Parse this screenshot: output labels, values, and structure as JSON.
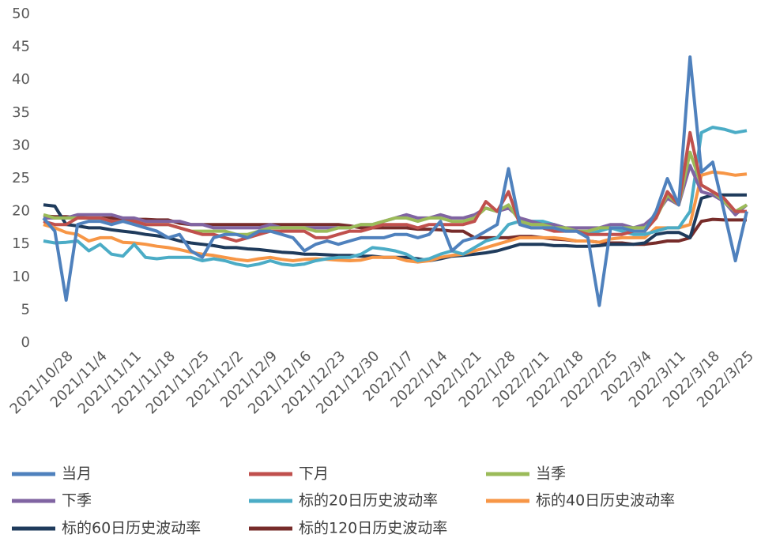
{
  "chart_data": {
    "type": "line",
    "categories": [
      null,
      null,
      "2021/10/28",
      null,
      null,
      "2021/11/4",
      null,
      null,
      "2021/11/11",
      null,
      null,
      "2021/11/18",
      null,
      null,
      "2021/11/25",
      null,
      null,
      "2021/12/2",
      null,
      null,
      "2021/12/9",
      null,
      null,
      "2021/12/16",
      null,
      null,
      "2021/12/23",
      null,
      null,
      "2021/12/30",
      null,
      null,
      "2022/1/7",
      null,
      null,
      "2022/1/14",
      null,
      null,
      "2022/1/21",
      null,
      null,
      "2022/1/28",
      null,
      null,
      "2022/2/11",
      null,
      null,
      "2022/2/18",
      null,
      null,
      "2022/2/25",
      null,
      null,
      "2022/3/4",
      null,
      null,
      "2022/3/11",
      null,
      null,
      "2022/3/18",
      null,
      null,
      "2022/3/25"
    ],
    "ylim": [
      0,
      50
    ],
    "yticks": [
      0,
      5,
      10,
      15,
      20,
      25,
      30,
      35,
      40,
      45,
      50
    ],
    "series": [
      {
        "name": "当月",
        "color": "#4f81bd",
        "values": [
          19,
          17,
          6.5,
          18,
          18.5,
          18.5,
          18,
          18.5,
          18,
          17.5,
          17,
          16,
          16.5,
          14,
          13,
          16,
          16.5,
          16.5,
          16,
          17,
          17,
          16.5,
          16,
          14,
          15,
          15.5,
          15,
          15.5,
          16,
          16,
          16,
          16.5,
          16.5,
          16,
          16.5,
          18.5,
          14,
          15.5,
          16,
          17,
          18,
          26.5,
          18,
          17.5,
          17.5,
          17.5,
          17,
          17,
          16,
          5.7,
          17.5,
          17.5,
          17,
          17,
          20,
          25,
          21,
          43.5,
          26,
          27.5,
          20,
          12.5,
          20
        ]
      },
      {
        "name": "下月",
        "color": "#c0504d",
        "values": [
          18.5,
          18,
          18,
          19,
          19,
          19,
          18.5,
          18.5,
          18.5,
          18,
          18,
          18,
          17.5,
          17,
          16.5,
          16.5,
          16,
          15.5,
          16,
          16.5,
          17,
          17,
          17,
          17,
          16,
          16,
          16.5,
          17,
          17,
          17.5,
          18,
          18,
          18,
          17.5,
          18,
          18,
          18,
          18,
          18.5,
          21.5,
          20,
          23,
          18,
          17.5,
          17.5,
          17,
          17,
          17,
          16.5,
          16.5,
          16.5,
          16.5,
          17,
          17,
          19,
          23,
          21,
          32,
          24,
          23,
          22,
          20,
          20
        ]
      },
      {
        "name": "当季",
        "color": "#9bbb59",
        "values": [
          19.5,
          19,
          19,
          19,
          19,
          19,
          18.5,
          18.5,
          18.5,
          18,
          18,
          18,
          17.5,
          17,
          17,
          17,
          17,
          16.5,
          16.5,
          17,
          17.5,
          17.5,
          17.5,
          17.5,
          17,
          17,
          17.5,
          17.5,
          18,
          18,
          18.5,
          19,
          19,
          18.5,
          19,
          19,
          18.5,
          18.5,
          19,
          20.5,
          20,
          21,
          18.5,
          18,
          18,
          17.5,
          17.5,
          17,
          17,
          17.5,
          17.5,
          17.5,
          17.5,
          17.5,
          19,
          22.5,
          21,
          29,
          24,
          23,
          21.5,
          20,
          21
        ]
      },
      {
        "name": "下季",
        "color": "#8064a2",
        "values": [
          19,
          19,
          19,
          19.5,
          19.5,
          19.5,
          19.5,
          19,
          19,
          18.5,
          18.5,
          18.5,
          18.5,
          18,
          18,
          17.5,
          17.5,
          17.5,
          17.5,
          17.5,
          18,
          17.5,
          17.5,
          17.5,
          17.5,
          17.5,
          17.5,
          17.5,
          18,
          18,
          18.5,
          19,
          19.5,
          19,
          19,
          19.5,
          19,
          19,
          19.5,
          20.5,
          20,
          20.5,
          19,
          18.5,
          18,
          18,
          17.5,
          17.5,
          17.5,
          17.5,
          18,
          18,
          17.5,
          18,
          19.5,
          22,
          21,
          27,
          23,
          22.5,
          21.5,
          19.5,
          21
        ]
      },
      {
        "name": "标的20日历史波动率",
        "color": "#4bacc6",
        "values": [
          15.5,
          15.2,
          15.3,
          15.5,
          14,
          15,
          13.5,
          13.2,
          15,
          13,
          12.8,
          13,
          13,
          13,
          12.5,
          12.8,
          12.5,
          12,
          11.7,
          12,
          12.5,
          12,
          11.8,
          12,
          12.5,
          12.8,
          13,
          13,
          13.5,
          14.5,
          14.3,
          14,
          13.5,
          12.5,
          12.8,
          13.5,
          14,
          13.5,
          14.5,
          15.5,
          16,
          18,
          18.5,
          18.5,
          18.5,
          18,
          17.5,
          17,
          16.5,
          17,
          17.5,
          17,
          16.5,
          16.5,
          17,
          17.5,
          17.5,
          20,
          32,
          32.8,
          32.5,
          32,
          32.3
        ]
      },
      {
        "name": "标的40日历史波动率",
        "color": "#f79646",
        "values": [
          18,
          17.5,
          16.8,
          16.5,
          15.5,
          16,
          16,
          15.3,
          15.2,
          15,
          14.7,
          14.5,
          14.2,
          13.8,
          13.5,
          13.3,
          13,
          12.7,
          12.5,
          12.8,
          13,
          12.7,
          12.5,
          12.7,
          12.8,
          12.7,
          12.6,
          12.5,
          12.6,
          13,
          13,
          13,
          12.5,
          12.3,
          12.5,
          13,
          13.3,
          13.5,
          14,
          14.5,
          15,
          15.5,
          16,
          16,
          16,
          16,
          15.8,
          15.5,
          15.5,
          15.3,
          15.8,
          16,
          16,
          16,
          17.5,
          17.5,
          17.5,
          18,
          25.5,
          26,
          25.8,
          25.5,
          25.7
        ]
      },
      {
        "name": "标的60日历史波动率",
        "color": "#1f3b5c",
        "values": [
          21,
          20.8,
          18,
          17.8,
          17.5,
          17.5,
          17.2,
          17,
          16.8,
          16.5,
          16.3,
          16,
          15.5,
          15.2,
          15,
          14.8,
          14.5,
          14.5,
          14.3,
          14.2,
          14,
          13.8,
          13.7,
          13.5,
          13.5,
          13.4,
          13.3,
          13.3,
          13.2,
          13.2,
          13,
          13,
          13,
          12.8,
          12.5,
          12.8,
          13.2,
          13.3,
          13.5,
          13.7,
          14,
          14.5,
          15,
          15,
          15,
          14.8,
          14.8,
          14.7,
          14.7,
          14.8,
          15,
          15,
          15,
          15.2,
          16.5,
          16.8,
          16.8,
          16,
          22,
          22.5,
          22.5,
          22.5,
          22.5
        ]
      },
      {
        "name": "标的120日历史波动率",
        "color": "#772c2a",
        "values": [
          19.3,
          19.2,
          19.2,
          19.1,
          19,
          19,
          19,
          18.9,
          18.8,
          18.8,
          18.7,
          18.7,
          18.2,
          18,
          18,
          18,
          18,
          18,
          18,
          18,
          18,
          18,
          18,
          18,
          18,
          18,
          18,
          17.8,
          17.5,
          17.5,
          17.5,
          17.5,
          17.5,
          17.3,
          17.3,
          17.2,
          17,
          17,
          16,
          16,
          16,
          16,
          16.2,
          16.2,
          16,
          15.8,
          15.7,
          15.5,
          15.5,
          15.3,
          15.2,
          15.2,
          15,
          15,
          15.2,
          15.5,
          15.5,
          16,
          18.5,
          18.8,
          18.7,
          18.7,
          18.7
        ]
      }
    ]
  }
}
